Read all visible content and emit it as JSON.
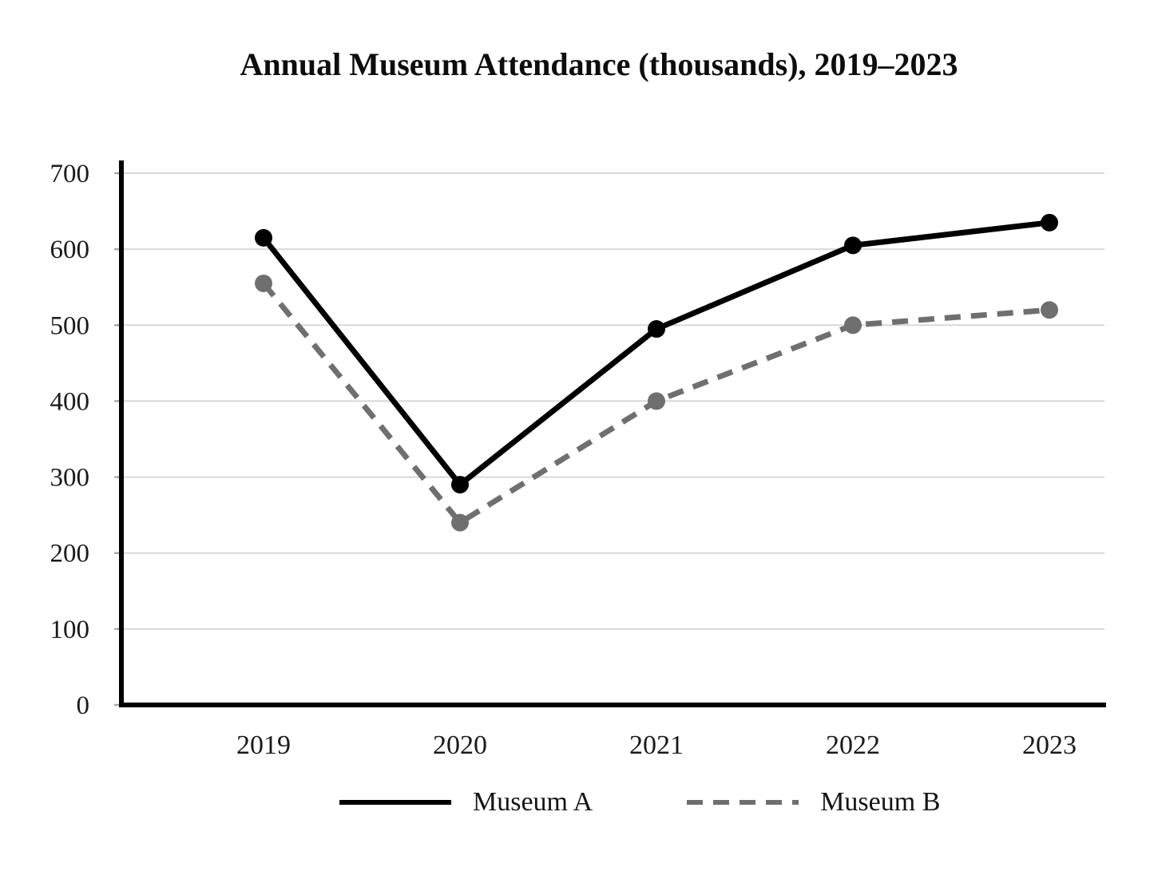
{
  "page": {
    "kind": "static line chart figure"
  },
  "chart_data": {
    "type": "line",
    "title": "Annual Museum Attendance (thousands), 2019–2023",
    "categories": [
      "2019",
      "2020",
      "2021",
      "2022",
      "2023"
    ],
    "series": [
      {
        "name": "Museum A",
        "values": [
          615,
          290,
          495,
          605,
          635
        ],
        "color": "#000000",
        "style": "solid"
      },
      {
        "name": "Museum B",
        "values": [
          555,
          240,
          400,
          500,
          520
        ],
        "color": "#6f6f6f",
        "style": "dashed"
      }
    ],
    "xlabel": "",
    "ylabel": "",
    "ylim": [
      0,
      700
    ],
    "yticks": [
      0,
      100,
      200,
      300,
      400,
      500,
      600,
      700
    ],
    "grid": true,
    "grid_color": "#d8d8d8",
    "axis_color": "#000000",
    "tick_color": "#aaaaaa",
    "label_color": "#1a1a1a",
    "legend_position": "bottom",
    "marker": "circle"
  }
}
